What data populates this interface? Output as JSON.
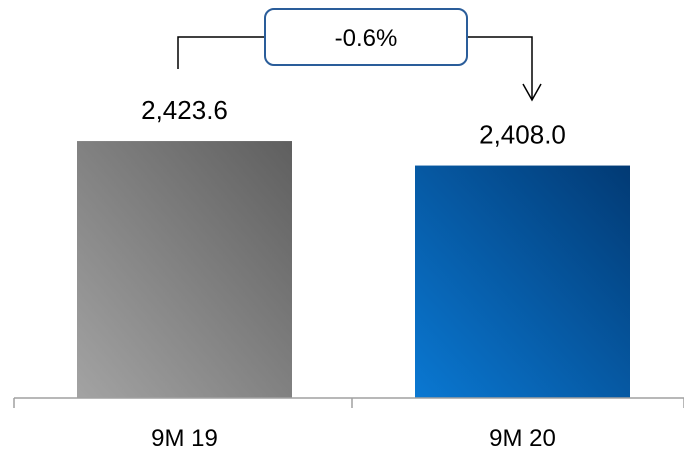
{
  "chart_data": {
    "type": "bar",
    "categories": [
      "9M 19",
      "9M 20"
    ],
    "values": [
      2423.6,
      2408.0
    ],
    "value_labels": [
      "2,423.6",
      "2,408.0"
    ],
    "title": "",
    "xlabel": "",
    "ylabel": "",
    "ylim": [
      2260,
      2430
    ],
    "grid": false,
    "legend": "none",
    "change_annotation": {
      "label": "-0.6%",
      "from": "9M 19",
      "to": "9M 20"
    },
    "colors": {
      "9M 19": {
        "light": "#a3a3a3",
        "dark": "#5f5f5f"
      },
      "9M 20": {
        "light": "#0a78d2",
        "dark": "#023a74"
      },
      "axis": "#a0a0a0",
      "box_border": "#2a5d9a",
      "connector": "#000000"
    }
  }
}
